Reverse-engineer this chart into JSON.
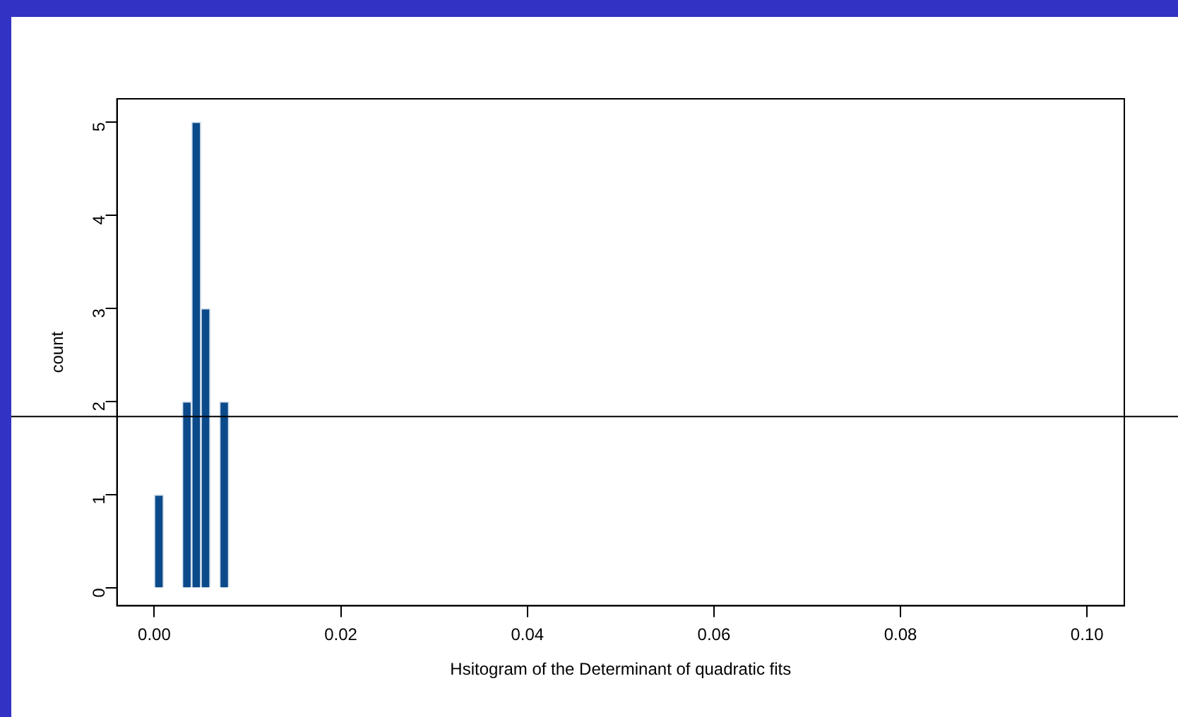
{
  "chart_data": {
    "type": "histogram",
    "xlabel": "Hsitogram of the Determinant of quadratic fits",
    "ylabel": "count",
    "bins": [
      0,
      0.001,
      0.002,
      0.003,
      0.004,
      0.005,
      0.006,
      0.007,
      0.008
    ],
    "values": [
      1,
      0,
      0,
      2,
      5,
      3,
      0,
      2
    ],
    "color": "#0b4a8a",
    "xlim": [
      -0.004,
      0.104
    ],
    "xticks": [
      {
        "value": 0,
        "label": "0.00"
      },
      {
        "value": 0.02,
        "label": "0.02"
      },
      {
        "value": 0.04,
        "label": "0.04"
      },
      {
        "value": 0.06,
        "label": "0.06"
      },
      {
        "value": 0.08,
        "label": "0.08"
      },
      {
        "value": 0.1,
        "label": "0.10"
      }
    ],
    "ylim": [
      -0.19,
      5.25
    ],
    "yticks": [
      0,
      1,
      2,
      3,
      4,
      5
    ],
    "ref_lines": [
      {
        "axis": "y",
        "value": 1.84,
        "color": "#000000"
      }
    ],
    "grid": false,
    "legend": false
  }
}
